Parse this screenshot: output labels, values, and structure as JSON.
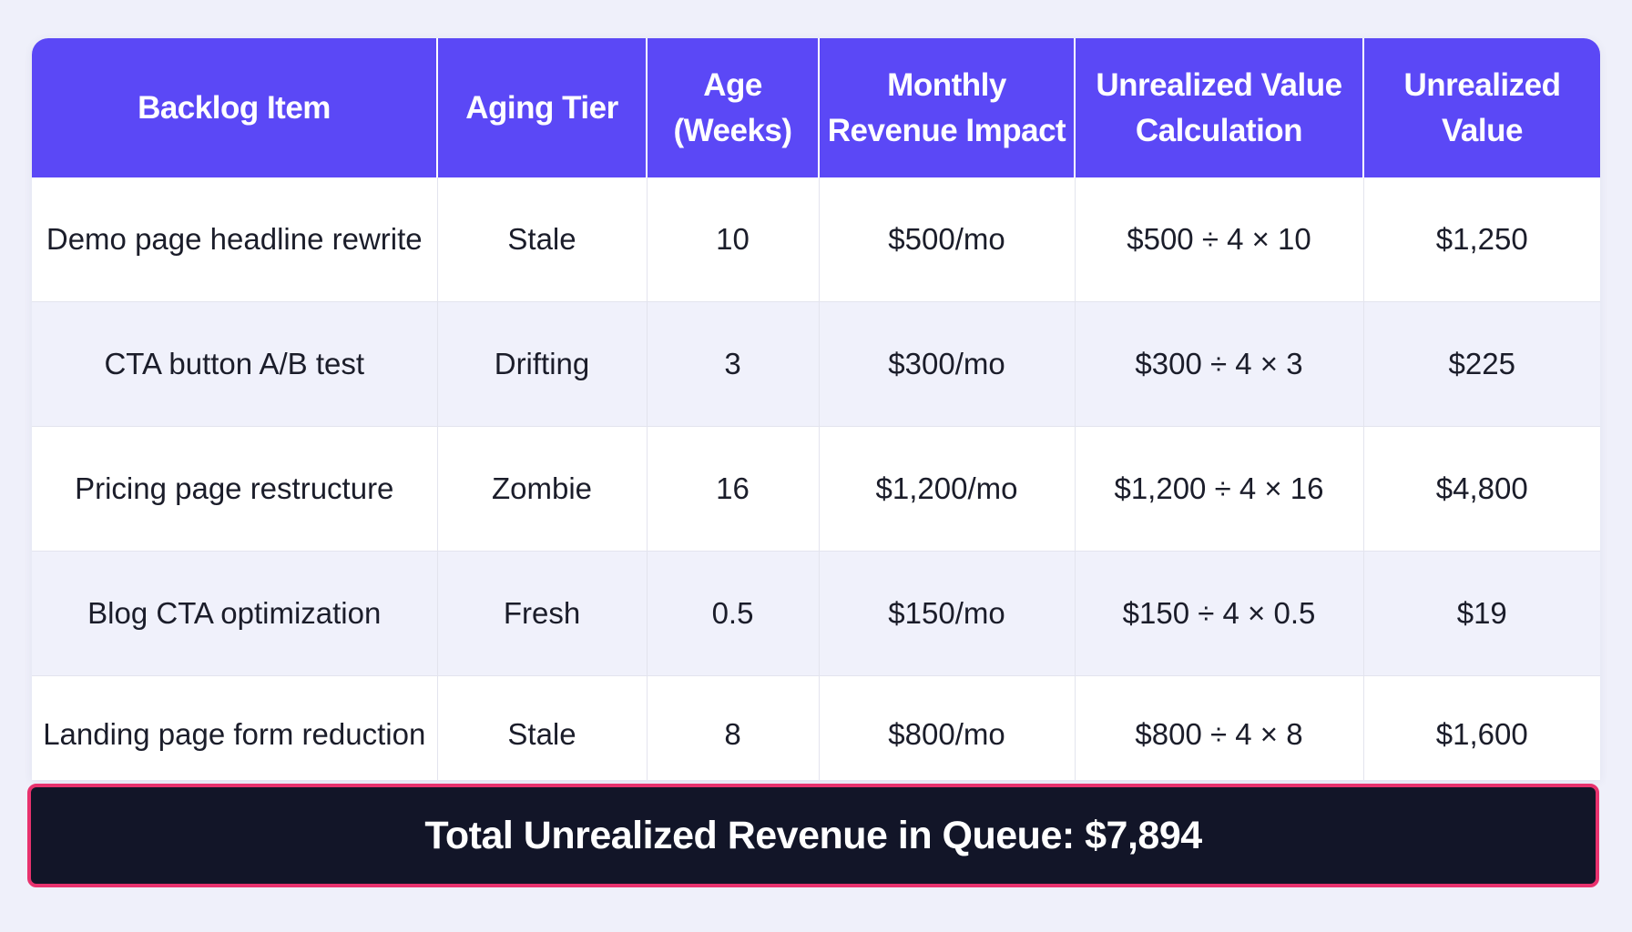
{
  "table": {
    "headers": [
      {
        "line1": "Backlog Item",
        "line2": ""
      },
      {
        "line1": "Aging Tier",
        "line2": ""
      },
      {
        "line1": "Age",
        "line2": "(Weeks)"
      },
      {
        "line1": "Monthly",
        "line2": "Revenue Impact"
      },
      {
        "line1": "Unrealized Value",
        "line2": "Calculation"
      },
      {
        "line1": "Unrealized",
        "line2": "Value"
      }
    ],
    "rows": [
      {
        "item": "Demo page headline rewrite",
        "tier": "Stale",
        "age": "10",
        "monthly": "$500/mo",
        "calc": "$500 ÷ 4 × 10",
        "value": "$1,250"
      },
      {
        "item": "CTA button A/B test",
        "tier": "Drifting",
        "age": "3",
        "monthly": "$300/mo",
        "calc": "$300 ÷ 4 × 3",
        "value": "$225"
      },
      {
        "item": "Pricing page restructure",
        "tier": "Zombie",
        "age": "16",
        "monthly": "$1,200/mo",
        "calc": "$1,200 ÷ 4 × 16",
        "value": "$4,800"
      },
      {
        "item": "Blog CTA optimization",
        "tier": "Fresh",
        "age": "0.5",
        "monthly": "$150/mo",
        "calc": "$150 ÷ 4 × 0.5",
        "value": "$19"
      },
      {
        "item": "Landing page form reduction",
        "tier": "Stale",
        "age": "8",
        "monthly": "$800/mo",
        "calc": "$800 ÷ 4 × 8",
        "value": "$1,600"
      }
    ]
  },
  "total": {
    "label": "Total Unrealized Revenue in Queue: $7,894"
  },
  "colors": {
    "header_bg": "#5b48f6",
    "alt_row_bg": "#f0f1fb",
    "total_bg": "#121528",
    "total_border": "#e8326e"
  }
}
